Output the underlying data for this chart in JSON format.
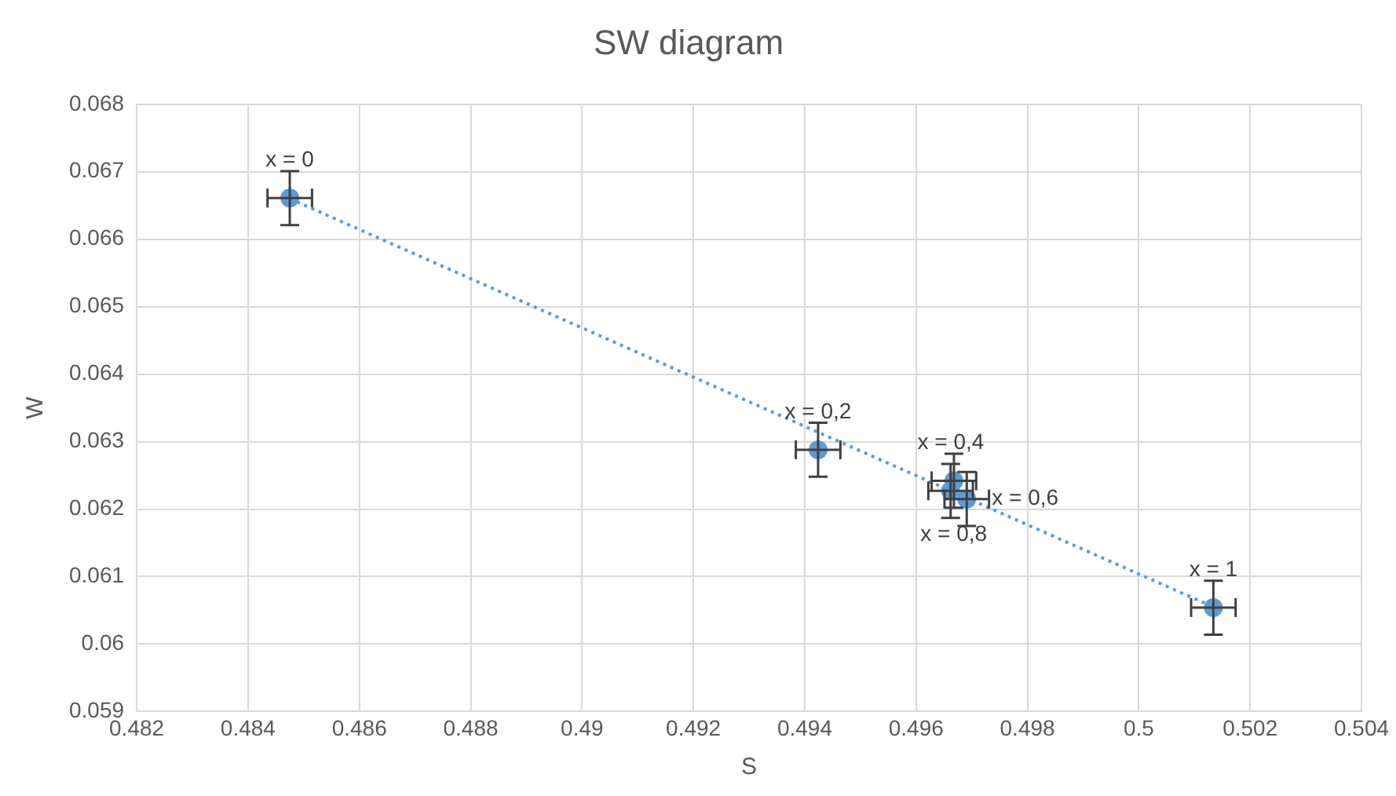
{
  "chart_data": {
    "type": "scatter",
    "title": "SW diagram",
    "xlabel": "S",
    "ylabel": "W",
    "xlim": [
      0.482,
      0.504
    ],
    "xticks": [
      0.482,
      0.484,
      0.486,
      0.488,
      0.49,
      0.492,
      0.494,
      0.496,
      0.498,
      0.5,
      0.502,
      0.504
    ],
    "ylim": [
      0.059,
      0.068
    ],
    "yticks": [
      0.059,
      0.06,
      0.061,
      0.062,
      0.063,
      0.064,
      0.065,
      0.066,
      0.067,
      0.068
    ],
    "grid": true,
    "legend": false,
    "marker": "circle",
    "series": [
      {
        "color": "#5b9bd5",
        "x": [
          0.48475,
          0.49424,
          0.49668,
          0.49691,
          0.49662,
          0.50134
        ],
        "values": [
          0.06661,
          0.06288,
          0.06242,
          0.06215,
          0.06227,
          0.06054
        ],
        "errors": [
          0.0004,
          0.0004,
          0.0004,
          0.0004,
          0.0004,
          0.0004
        ],
        "xerrors": [
          0.0004,
          0.0004,
          0.0004,
          0.0004,
          0.0004,
          0.0004
        ]
      },
      {
        "type": "line",
        "color": "#5b9bd5",
        "line_style": "dotted",
        "marker": "none",
        "x": [
          0.48475,
          0.50134
        ],
        "values": [
          0.0666,
          0.06055
        ]
      }
    ],
    "annotations": [
      {
        "text": "x = 0",
        "x": 0.48475,
        "y": 0.06661
      },
      {
        "text": "x = 0,2",
        "x": 0.49424,
        "y": 0.06288
      },
      {
        "text": "x = 0,4",
        "x": 0.49668,
        "y": 0.06242
      },
      {
        "text": "x = 0,6",
        "x": 0.49691,
        "y": 0.06215
      },
      {
        "text": "x = 0,8",
        "x": 0.49662,
        "y": 0.06227
      },
      {
        "text": "x = 1",
        "x": 0.50134,
        "y": 0.06054
      }
    ]
  }
}
